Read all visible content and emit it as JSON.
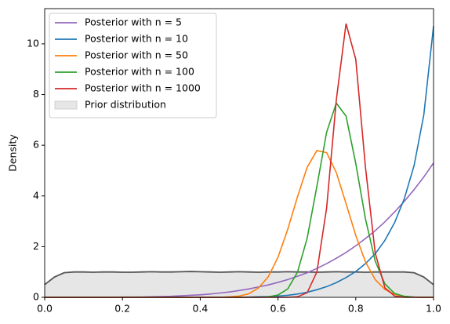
{
  "chart_data": {
    "type": "line",
    "y_label": "Density",
    "x": [
      0,
      0.025,
      0.05,
      0.075,
      0.1,
      0.125,
      0.15,
      0.175,
      0.2,
      0.225,
      0.25,
      0.275,
      0.3,
      0.325,
      0.35,
      0.375,
      0.4,
      0.425,
      0.45,
      0.475,
      0.5,
      0.525,
      0.55,
      0.575,
      0.6,
      0.625,
      0.65,
      0.675,
      0.7,
      0.725,
      0.75,
      0.775,
      0.8,
      0.825,
      0.85,
      0.875,
      0.9,
      0.925,
      0.95,
      0.975,
      1
    ],
    "series": [
      {
        "name": "Posterior with n = 5",
        "color": "#9467bd",
        "values": [
          0,
          0,
          0,
          0,
          0,
          0,
          0,
          0,
          0.01,
          0.01,
          0.01,
          0.02,
          0.03,
          0.04,
          0.06,
          0.08,
          0.1,
          0.13,
          0.17,
          0.21,
          0.27,
          0.33,
          0.41,
          0.49,
          0.59,
          0.7,
          0.83,
          0.97,
          1.14,
          1.33,
          1.54,
          1.77,
          2.03,
          2.32,
          2.63,
          2.98,
          3.37,
          3.79,
          4.25,
          4.75,
          5.3
        ]
      },
      {
        "name": "Posterior with n = 10",
        "color": "#1f77b4",
        "values": [
          0,
          0,
          0,
          0,
          0,
          0,
          0,
          0,
          0,
          0,
          0,
          0,
          0,
          0,
          0,
          0,
          0,
          0,
          0,
          0,
          0,
          0.01,
          0.02,
          0.03,
          0.05,
          0.08,
          0.13,
          0.2,
          0.3,
          0.42,
          0.58,
          0.78,
          1.02,
          1.33,
          1.72,
          2.25,
          2.95,
          3.9,
          5.2,
          7.2,
          10.7
        ]
      },
      {
        "name": "Posterior with n = 50",
        "color": "#ff7f0e",
        "values": [
          0,
          0,
          0,
          0,
          0,
          0,
          0,
          0,
          0,
          0,
          0,
          0,
          0,
          0,
          0,
          0,
          0,
          0,
          0,
          0.02,
          0.05,
          0.14,
          0.37,
          0.81,
          1.58,
          2.68,
          3.96,
          5.13,
          5.79,
          5.71,
          4.92,
          3.7,
          2.44,
          1.4,
          0.7,
          0.31,
          0.12,
          0.04,
          0.01,
          0,
          0
        ]
      },
      {
        "name": "Posterior with n = 100",
        "color": "#2ca02c",
        "values": [
          0,
          0,
          0,
          0,
          0,
          0,
          0,
          0,
          0,
          0,
          0,
          0,
          0,
          0,
          0,
          0,
          0,
          0,
          0,
          0,
          0,
          0,
          0,
          0.02,
          0.09,
          0.33,
          0.99,
          2.33,
          4.38,
          6.51,
          7.66,
          7.15,
          5.28,
          3.09,
          1.43,
          0.53,
          0.15,
          0.04,
          0.01,
          0,
          0
        ]
      },
      {
        "name": "Posterior with n = 1000",
        "color": "#d62728",
        "values": [
          0,
          0,
          0,
          0,
          0,
          0,
          0,
          0,
          0,
          0,
          0,
          0,
          0,
          0,
          0,
          0,
          0,
          0,
          0,
          0,
          0,
          0,
          0,
          0,
          0,
          0,
          0.02,
          0.18,
          1.0,
          3.52,
          7.79,
          10.8,
          9.39,
          5.12,
          1.75,
          0.37,
          0.05,
          0,
          0,
          0,
          0
        ]
      }
    ],
    "prior": {
      "name": "Prior distribution",
      "color": "#e6e6e6",
      "line_color": "#555555",
      "values": [
        0.5,
        0.8,
        0.97,
        1.0,
        1.0,
        0.99,
        1.0,
        1.0,
        0.99,
        0.99,
        1.0,
        1.01,
        1.0,
        1.0,
        1.01,
        1.02,
        1.01,
        1.0,
        0.99,
        1.0,
        1.01,
        1.0,
        0.99,
        1.0,
        1.0,
        1.01,
        1.0,
        1.0,
        0.99,
        1.0,
        1.01,
        1.0,
        1.0,
        0.99,
        1.0,
        1.0,
        1.0,
        1.0,
        0.97,
        0.8,
        0.5
      ]
    },
    "xlim": [
      0,
      1
    ],
    "ylim": [
      0,
      11.39
    ],
    "xticks": [
      {
        "value": 0,
        "label": "0.0"
      },
      {
        "value": 0.2,
        "label": "0.2"
      },
      {
        "value": 0.4,
        "label": "0.4"
      },
      {
        "value": 0.6,
        "label": "0.6"
      },
      {
        "value": 0.8,
        "label": "0.8"
      },
      {
        "value": 1,
        "label": "1.0"
      }
    ],
    "yticks": [
      0,
      2,
      4,
      6,
      8,
      10
    ],
    "grid": false,
    "legend": "upper left"
  }
}
